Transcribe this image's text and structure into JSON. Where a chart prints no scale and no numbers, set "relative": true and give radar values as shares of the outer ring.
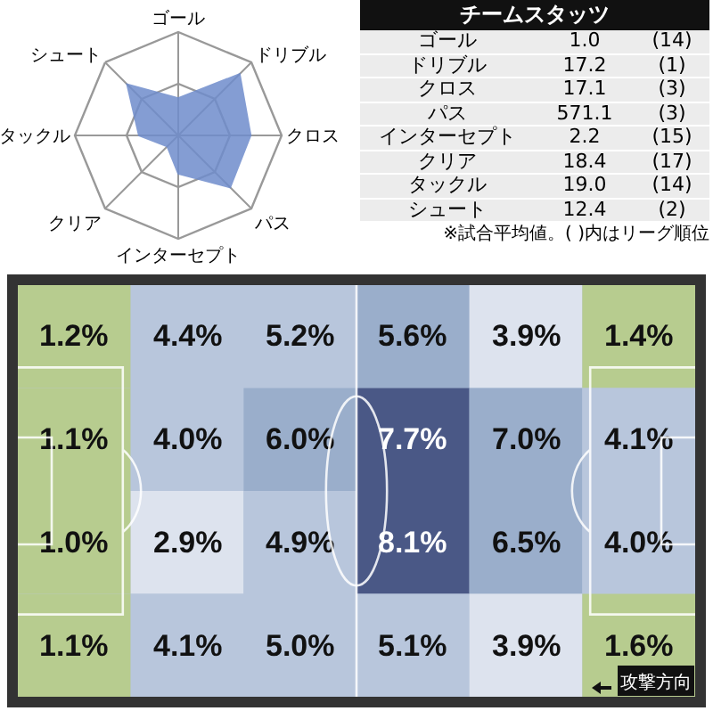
{
  "chart_data": [
    {
      "type": "radar",
      "relative": true,
      "grid": true,
      "categories": [
        "ゴール",
        "ドリブル",
        "クロス",
        "パス",
        "インターセプト",
        "クリア",
        "タックル",
        "シュート"
      ],
      "series": [
        {
          "color": "#6f8ccc",
          "values": [
            0.36,
            0.84,
            0.7,
            0.71,
            0.37,
            0.15,
            0.38,
            0.7
          ]
        }
      ]
    },
    {
      "type": "other",
      "title": "チームスタッツ",
      "categories": [
        "ゴール",
        "ドリブル",
        "クロス",
        "パス",
        "インターセプト",
        "クリア",
        "タックル",
        "シュート"
      ],
      "series": [
        {
          "values": [
            1.0,
            17.2,
            17.1,
            571.1,
            2.2,
            18.4,
            19.0,
            12.4
          ],
          "value_labels": [
            "1.0",
            "17.2",
            "17.1",
            "571.1",
            "2.2",
            "18.4",
            "19.0",
            "12.4"
          ]
        },
        {
          "values": [
            14,
            1,
            3,
            3,
            15,
            17,
            14,
            2
          ],
          "value_labels": [
            "(14)",
            "(1)",
            "(3)",
            "(3)",
            "(15)",
            "(17)",
            "(14)",
            "(2)"
          ]
        }
      ],
      "annotations": [
        "※試合平均値。( )内はリーグ順位"
      ]
    },
    {
      "type": "heatmap",
      "categories": [
        null,
        null,
        null,
        null,
        null,
        null
      ],
      "y_categories": [
        null,
        null,
        null,
        null
      ],
      "cells": [
        [
          1.2,
          4.4,
          5.2,
          5.6,
          3.9,
          1.4
        ],
        [
          1.1,
          4.0,
          6.0,
          7.7,
          7.0,
          4.1
        ],
        [
          1.0,
          2.9,
          4.9,
          8.1,
          6.5,
          4.0
        ],
        [
          1.1,
          4.1,
          5.0,
          5.1,
          3.9,
          1.6
        ]
      ],
      "cell_labels": [
        [
          "1.2%",
          "4.4%",
          "5.2%",
          "5.6%",
          "3.9%",
          "1.4%"
        ],
        [
          "1.1%",
          "4.0%",
          "6.0%",
          "7.7%",
          "7.0%",
          "4.1%"
        ],
        [
          "1.0%",
          "2.9%",
          "4.9%",
          "8.1%",
          "6.5%",
          "4.0%"
        ],
        [
          "1.1%",
          "4.1%",
          "5.0%",
          "5.1%",
          "3.9%",
          "1.6%"
        ]
      ],
      "colors": [
        [
          "#b7cc8f",
          "#b8c6dc",
          "#b8c6dc",
          "#9aaecb",
          "#dde3ee",
          "#b7cc8f"
        ],
        [
          "#b7cc8f",
          "#b8c6dc",
          "#9aaecb",
          "#4a5886",
          "#9aaecb",
          "#b8c6dc"
        ],
        [
          "#b7cc8f",
          "#dde3ee",
          "#b8c6dc",
          "#4a5886",
          "#9aaecb",
          "#b8c6dc"
        ],
        [
          "#b7cc8f",
          "#b8c6dc",
          "#b8c6dc",
          "#b8c6dc",
          "#dde3ee",
          "#b7cc8f"
        ]
      ],
      "annotations": [
        "攻撃方向"
      ]
    }
  ]
}
